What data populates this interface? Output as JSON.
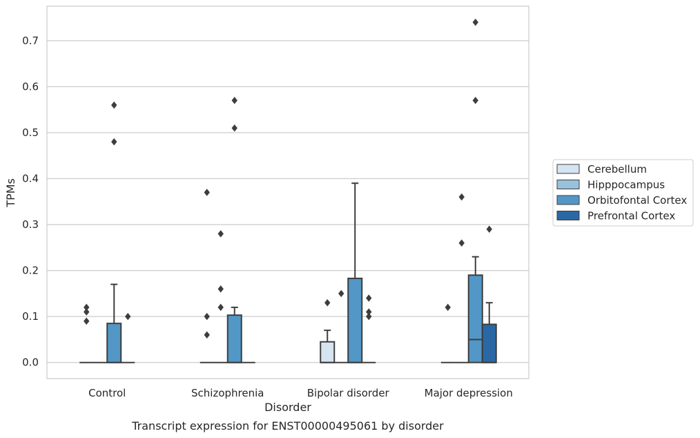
{
  "chart_data": {
    "type": "box",
    "title": "",
    "caption": "Transcript expression for ENST00000495061 by disorder",
    "xlabel": "Disorder",
    "ylabel": "TPMs",
    "ylim": [
      -0.035,
      0.775
    ],
    "yticks": [
      "0.0",
      "0.1",
      "0.2",
      "0.3",
      "0.4",
      "0.5",
      "0.6",
      "0.7"
    ],
    "ytick_values": [
      0.0,
      0.1,
      0.2,
      0.3,
      0.4,
      0.5,
      0.6,
      0.7
    ],
    "grid": "horizontal",
    "legend_position": "right",
    "categories": [
      "Control",
      "Schizophrenia",
      "Bipolar disorder",
      "Major depression"
    ],
    "series": [
      {
        "name": "Cerebellum",
        "color": "#d6e4f2",
        "boxes": [
          {
            "q1": 0,
            "median": 0,
            "q3": 0,
            "whisker_low": 0,
            "whisker_high": 0,
            "outliers": [
              0.09,
              0.11,
              0.12
            ]
          },
          {
            "q1": 0,
            "median": 0,
            "q3": 0,
            "whisker_low": 0,
            "whisker_high": 0,
            "outliers": [
              0.06,
              0.1,
              0.37
            ]
          },
          {
            "q1": 0,
            "median": 0,
            "q3": 0.045,
            "whisker_low": 0,
            "whisker_high": 0.07,
            "outliers": [
              0.13
            ]
          },
          {
            "q1": 0,
            "median": 0,
            "q3": 0,
            "whisker_low": 0,
            "whisker_high": 0,
            "outliers": [
              0.12
            ]
          }
        ]
      },
      {
        "name": "Hipppocampus",
        "color": "#9ac1db",
        "boxes": [
          {
            "q1": 0,
            "median": 0,
            "q3": 0,
            "whisker_low": 0,
            "whisker_high": 0,
            "outliers": []
          },
          {
            "q1": 0,
            "median": 0,
            "q3": 0,
            "whisker_low": 0,
            "whisker_high": 0,
            "outliers": [
              0.12,
              0.16,
              0.28
            ]
          },
          {
            "q1": 0,
            "median": 0,
            "q3": 0,
            "whisker_low": 0,
            "whisker_high": 0,
            "outliers": [
              0.15
            ]
          },
          {
            "q1": 0,
            "median": 0,
            "q3": 0,
            "whisker_low": 0,
            "whisker_high": 0,
            "outliers": [
              0.26,
              0.36
            ]
          }
        ]
      },
      {
        "name": "Orbitofontal Cortex",
        "color": "#5397c6",
        "boxes": [
          {
            "q1": 0,
            "median": 0,
            "q3": 0.085,
            "whisker_low": 0,
            "whisker_high": 0.17,
            "outliers": [
              0.48,
              0.56
            ]
          },
          {
            "q1": 0,
            "median": 0,
            "q3": 0.103,
            "whisker_low": 0,
            "whisker_high": 0.12,
            "outliers": [
              0.51,
              0.57
            ]
          },
          {
            "q1": 0,
            "median": 0,
            "q3": 0.183,
            "whisker_low": 0,
            "whisker_high": 0.39,
            "outliers": []
          },
          {
            "q1": 0,
            "median": 0.05,
            "q3": 0.19,
            "whisker_low": 0,
            "whisker_high": 0.23,
            "outliers": [
              0.57,
              0.74
            ]
          }
        ]
      },
      {
        "name": "Prefrontal Cortex",
        "color": "#2a67a5",
        "boxes": [
          {
            "q1": 0,
            "median": 0,
            "q3": 0,
            "whisker_low": 0,
            "whisker_high": 0,
            "outliers": [
              0.1
            ]
          },
          {
            "q1": 0,
            "median": 0,
            "q3": 0,
            "whisker_low": 0,
            "whisker_high": 0,
            "outliers": []
          },
          {
            "q1": 0,
            "median": 0,
            "q3": 0,
            "whisker_low": 0,
            "whisker_high": 0,
            "outliers": [
              0.1,
              0.11,
              0.14
            ]
          },
          {
            "q1": 0,
            "median": 0,
            "q3": 0.083,
            "whisker_low": 0,
            "whisker_high": 0.13,
            "outliers": [
              0.29
            ]
          }
        ]
      }
    ]
  }
}
